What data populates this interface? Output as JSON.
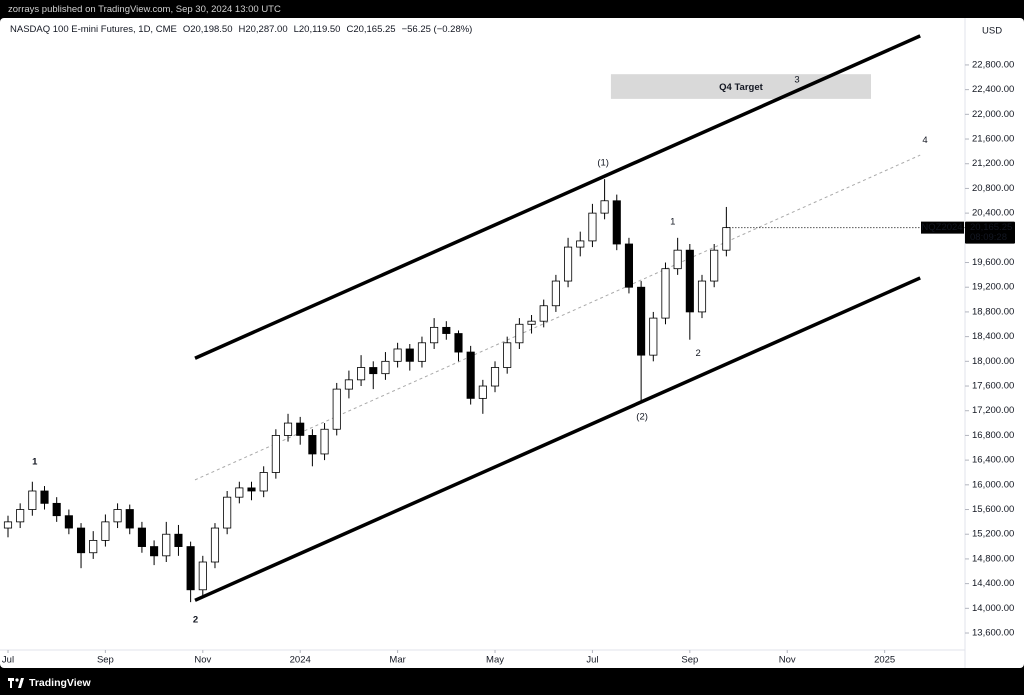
{
  "header": {
    "publisher": "zorrays published on TradingView.com, Sep 30, 2024 13:00 UTC"
  },
  "footer": {
    "brand": "TradingView"
  },
  "chart_data": {
    "type": "candlestick",
    "title": "NASDAQ 100 E-mini Futures, 1D, CME",
    "ohlc_legend": [
      "O20,198.50",
      "H20,287.00",
      "L20,119.50",
      "C20,165.25",
      "−56.25 (−0.28%)"
    ],
    "currency": "USD",
    "x": [
      0,
      0.25,
      0.5,
      0.75,
      1,
      1.25,
      1.5,
      1.75,
      2,
      2.25,
      2.5,
      2.75,
      3,
      3.25,
      3.5,
      3.75,
      4,
      4.25,
      4.5,
      4.75,
      5,
      5.25,
      5.5,
      5.75,
      6,
      6.25,
      6.5,
      6.75,
      7,
      7.25,
      7.5,
      7.75,
      8,
      8.25,
      8.5,
      8.75,
      9,
      9.25,
      9.5,
      9.75,
      10,
      10.25,
      10.5,
      10.75,
      11,
      11.25,
      11.5,
      11.75,
      12,
      12.25,
      12.5,
      12.75,
      13,
      13.25,
      13.5,
      13.75,
      14,
      14.25,
      14.5,
      14.75
    ],
    "open": [
      15300,
      15400,
      15600,
      15900,
      15700,
      15500,
      15300,
      14900,
      15100,
      15400,
      15600,
      15300,
      15000,
      14850,
      15200,
      15000,
      14300,
      14750,
      15300,
      15800,
      15950,
      15900,
      16200,
      16800,
      17000,
      16800,
      16500,
      16900,
      17550,
      17700,
      17900,
      17800,
      18000,
      18200,
      18000,
      18300,
      18550,
      18450,
      18150,
      17400,
      17600,
      17900,
      18300,
      18600,
      18650,
      18900,
      19300,
      19850,
      19950,
      20400,
      20600,
      19900,
      19200,
      18100,
      18700,
      19500,
      19800,
      18800,
      19300,
      19800
    ],
    "high": [
      15500,
      15700,
      16050,
      15980,
      15800,
      15600,
      15380,
      15250,
      15520,
      15700,
      15680,
      15400,
      15100,
      15400,
      15350,
      15080,
      14850,
      15380,
      15900,
      16050,
      16050,
      16300,
      16900,
      17150,
      17100,
      16900,
      17000,
      17650,
      17850,
      18100,
      18000,
      18150,
      18300,
      18280,
      18400,
      18700,
      18650,
      18500,
      18250,
      17700,
      18000,
      18400,
      18700,
      18750,
      19000,
      19400,
      20000,
      20100,
      20550,
      20950,
      20700,
      20000,
      19300,
      18800,
      19600,
      20000,
      19900,
      19400,
      19900,
      20500
    ],
    "low": [
      15150,
      15300,
      15500,
      15600,
      15400,
      15200,
      14650,
      14800,
      15000,
      15300,
      15200,
      14900,
      14700,
      14750,
      14850,
      14100,
      14200,
      14650,
      15200,
      15700,
      15750,
      15800,
      16100,
      16700,
      16650,
      16300,
      16400,
      16800,
      17400,
      17600,
      17550,
      17700,
      17900,
      17850,
      17900,
      18200,
      18350,
      18000,
      17300,
      17150,
      17500,
      17800,
      18200,
      18450,
      18550,
      18800,
      19200,
      19700,
      19850,
      20300,
      19800,
      19100,
      17330,
      18000,
      18600,
      19400,
      18350,
      18700,
      19200,
      19700
    ],
    "close": [
      15400,
      15600,
      15900,
      15700,
      15500,
      15300,
      14900,
      15100,
      15400,
      15600,
      15300,
      15000,
      14850,
      15200,
      15000,
      14300,
      14750,
      15300,
      15800,
      15950,
      15900,
      16200,
      16800,
      17000,
      16800,
      16500,
      16900,
      17550,
      17700,
      17900,
      17800,
      18000,
      18200,
      18000,
      18300,
      18550,
      18450,
      18150,
      17400,
      17600,
      17900,
      18300,
      18600,
      18650,
      18900,
      19300,
      19850,
      19950,
      20400,
      20600,
      19900,
      19200,
      18100,
      18700,
      19500,
      19800,
      18800,
      19300,
      19800,
      20165.25
    ],
    "up_color": "#ffffff",
    "down_color": "#000000",
    "wick_color": "#000000",
    "xlim": [
      -0.164,
      19.65
    ],
    "xticks": [
      {
        "value": 0,
        "label": "Jul"
      },
      {
        "value": 2,
        "label": "Sep"
      },
      {
        "value": 4,
        "label": "Nov"
      },
      {
        "value": 6,
        "label": "2024"
      },
      {
        "value": 8,
        "label": "Mar"
      },
      {
        "value": 10,
        "label": "May"
      },
      {
        "value": 12,
        "label": "Jul"
      },
      {
        "value": 14,
        "label": "Sep"
      },
      {
        "value": 16,
        "label": "Nov"
      },
      {
        "value": 18,
        "label": "2025"
      }
    ],
    "ylim": [
      13325,
      23560
    ],
    "yticks": [
      {
        "value": 13600,
        "label": "13,600.00"
      },
      {
        "value": 14000,
        "label": "14,000.00"
      },
      {
        "value": 14400,
        "label": "14,400.00"
      },
      {
        "value": 14800,
        "label": "14,800.00"
      },
      {
        "value": 15200,
        "label": "15,200.00"
      },
      {
        "value": 15600,
        "label": "15,600.00"
      },
      {
        "value": 16000,
        "label": "16,000.00"
      },
      {
        "value": 16400,
        "label": "16,400.00"
      },
      {
        "value": 16800,
        "label": "16,800.00"
      },
      {
        "value": 17200,
        "label": "17,200.00"
      },
      {
        "value": 17600,
        "label": "17,600.00"
      },
      {
        "value": 18000,
        "label": "18,000.00"
      },
      {
        "value": 18400,
        "label": "18,400.00"
      },
      {
        "value": 18800,
        "label": "18,800.00"
      },
      {
        "value": 19200,
        "label": "19,200.00"
      },
      {
        "value": 19600,
        "label": "19,600.00"
      },
      {
        "value": 20000,
        "label": "20,000.00"
      },
      {
        "value": 20400,
        "label": "20,400.00"
      },
      {
        "value": 20800,
        "label": "20,800.00"
      },
      {
        "value": 21200,
        "label": "21,200.00"
      },
      {
        "value": 21600,
        "label": "21,600.00"
      },
      {
        "value": 22000,
        "label": "22,000.00"
      },
      {
        "value": 22400,
        "label": "22,400.00"
      },
      {
        "value": 22800,
        "label": "22,800.00"
      }
    ],
    "last_price": {
      "symbol": "NQZ2024",
      "value": 20165.25,
      "label": "20,165.25",
      "countdown": "08:09:28"
    },
    "lines": [
      {
        "x": [
          3.84,
          18.73
        ],
        "y": [
          18050,
          23270
        ],
        "color": "#000000",
        "dashed": false
      },
      {
        "x": [
          3.84,
          18.73
        ],
        "y": [
          14130,
          19350
        ],
        "color": "#000000",
        "dashed": false
      },
      {
        "x": [
          3.84,
          18.73
        ],
        "y": [
          16080,
          21340
        ],
        "color": "#aaaaaa",
        "dashed": true
      }
    ],
    "target_zone": {
      "label": "Q4 Target",
      "x": [
        12.38,
        17.72
      ],
      "y": [
        22250,
        22650
      ],
      "color": "#d9d9d9"
    },
    "annotations": [
      {
        "text": "1",
        "x": 0.55,
        "y": 16370
      },
      {
        "text": "2",
        "x": 3.85,
        "y": 13810
      },
      {
        "text": "(1)",
        "x": 12.22,
        "y": 21210
      },
      {
        "text": "(2)",
        "x": 13.02,
        "y": 17100
      },
      {
        "text": "1",
        "x": 13.65,
        "y": 20260
      },
      {
        "text": "2",
        "x": 14.17,
        "y": 18130
      },
      {
        "text": "3",
        "x": 16.2,
        "y": 22560
      },
      {
        "text": "4",
        "x": 18.83,
        "y": 21580
      }
    ]
  }
}
